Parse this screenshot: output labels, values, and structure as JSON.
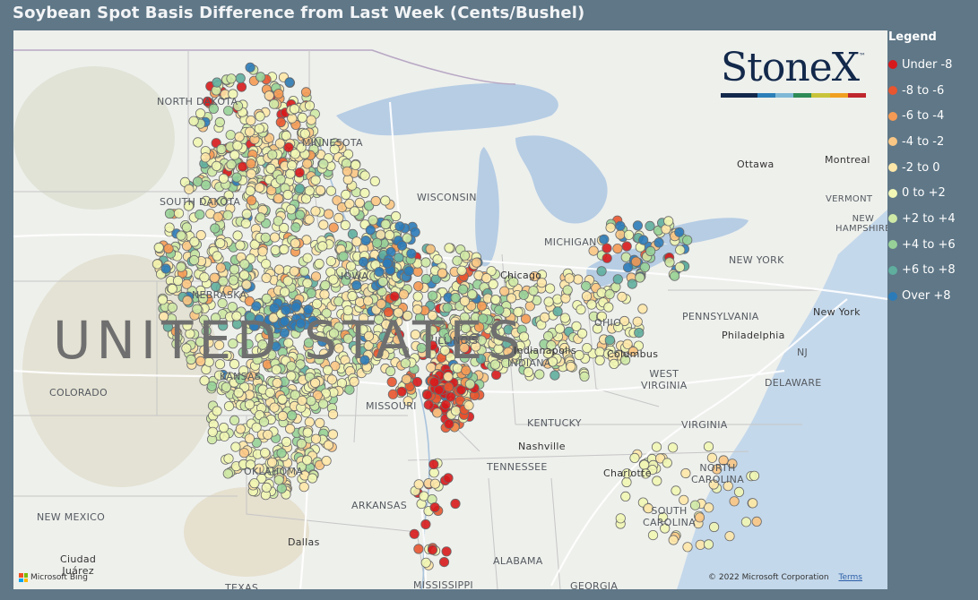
{
  "title": "Soybean Spot Basis Difference from Last Week (Cents/Bushel)",
  "legend": {
    "title": "Legend",
    "items": [
      {
        "label": "Under -8",
        "color": "#d7191c"
      },
      {
        "label": "-8 to -6",
        "color": "#e8552f"
      },
      {
        "label": "-6 to -4",
        "color": "#f49a54"
      },
      {
        "label": "-4 to -2",
        "color": "#fbc784"
      },
      {
        "label": "-2 to 0",
        "color": "#fee7a8"
      },
      {
        "label": "0 to +2",
        "color": "#f1f6b4"
      },
      {
        "label": "+2 to +4",
        "color": "#cfe9a6"
      },
      {
        "label": "+4 to +6",
        "color": "#97d198"
      },
      {
        "label": "+6 to +8",
        "color": "#5fae9e"
      },
      {
        "label": "Over +8",
        "color": "#2b7bb9"
      }
    ]
  },
  "map": {
    "country_label": "UNITED STATES",
    "labels": {
      "north_dakota": "NORTH DAKOTA",
      "minnesota": "MINNESOTA",
      "south_dakota": "SOUTH DAKOTA",
      "wisconsin": "WISCONSIN",
      "michigan": "MICHIGAN",
      "nebraska": "NEBRASKA",
      "iowa": "IOWA",
      "illinois": "ILLINOIS",
      "indiana": "INDIANA",
      "ohio": "OHIO",
      "colorado": "COLORADO",
      "kansas": "KANSAS",
      "missouri": "MISSOURI",
      "kentucky": "KENTUCKY",
      "tennessee": "TENNESSEE",
      "oklahoma": "OKLAHOMA",
      "arkansas": "ARKANSAS",
      "new_mexico": "NEW MEXICO",
      "texas": "TEXAS",
      "mississippi": "MISSISSIPPI",
      "alabama": "ALABAMA",
      "georgia": "GEORGIA",
      "south_carolina": "SOUTH\nCAROLINA",
      "north_carolina": "NORTH\nCAROLINA",
      "virginia": "VIRGINIA",
      "west_virginia": "WEST\nVIRGINIA",
      "pennsylvania": "PENNSYLVANIA",
      "new_york": "NEW YORK",
      "vermont": "VERMONT",
      "new_hampshire": "NEW\nHAMPSHIRE",
      "nj": "NJ",
      "delaware": "DELAWARE",
      "ottawa": "Ottawa",
      "montreal": "Montreal",
      "chicago": "Chicago",
      "indianapolis": "Indianapolis",
      "columbus": "Columbus",
      "philadelphia": "Philadelphia",
      "new_york_city": "New York",
      "nashville": "Nashville",
      "charlotte": "Charlotte",
      "dallas": "Dallas",
      "ciudad_juarez": "Ciudad\nJuárez"
    },
    "copyright": "© 2022 Microsoft Corporation",
    "terms": "Terms",
    "bing": "Microsoft Bing"
  },
  "logo": {
    "text": "StoneX",
    "tm": "™",
    "stripe_colors": [
      "#13294b",
      "#13294b",
      "#2c7fb8",
      "#7fb8d6",
      "#2e8b57",
      "#c8c43a",
      "#f0a020",
      "#c0262d"
    ]
  }
}
